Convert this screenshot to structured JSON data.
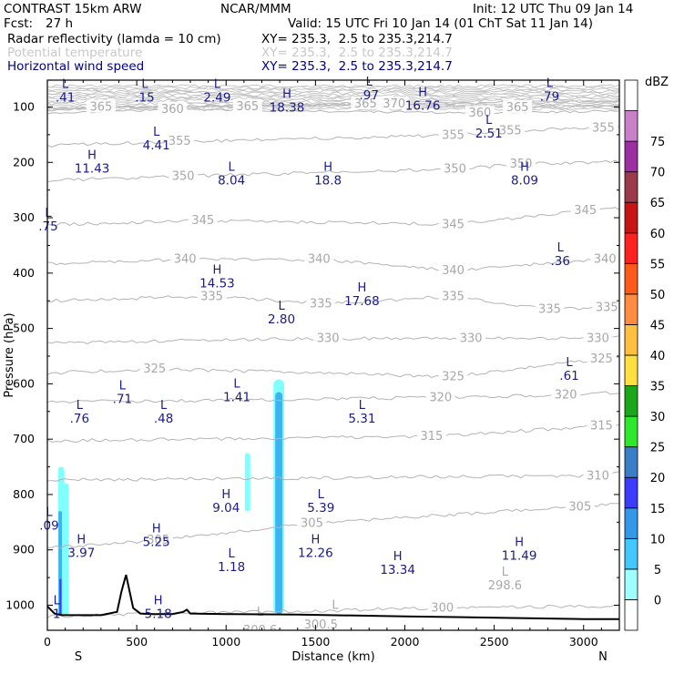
{
  "header": {
    "model": "CONTRAST 15km ARW",
    "org": "NCAR/MMM",
    "init": "Init: 12 UTC Thu 09 Jan 14",
    "fcst_label": "Fcst:",
    "fcst_value": "27 h",
    "valid": "Valid: 15 UTC Fri 10 Jan 14 (01 ChT Sat 11 Jan 14)",
    "fields": [
      {
        "name": "Radar reflectivity (lamda = 10 cm)",
        "xy": "XY= 235.3,  2.5 to 235.3,214.7",
        "color": "#000000"
      },
      {
        "name": "Potential temperature",
        "xy": "XY= 235.3,  2.5 to 235.3,214.7",
        "color": "#c8c8c8"
      },
      {
        "name": "Horizontal wind speed",
        "xy": "XY= 235.3,  2.5 to 235.3,214.7",
        "color": "#00008b"
      }
    ]
  },
  "colorbar": {
    "unit": "dBZ",
    "levels": [
      "0",
      "5",
      "10",
      "15",
      "20",
      "25",
      "30",
      "35",
      "40",
      "45",
      "50",
      "55",
      "60",
      "65",
      "70",
      "75"
    ],
    "colors": [
      "#ffffff",
      "#a0ffff",
      "#40c8ff",
      "#3498e8",
      "#3c3cff",
      "#3a7ec8",
      "#2ee82e",
      "#1aa81a",
      "#ffe040",
      "#ffbf40",
      "#ff8c40",
      "#ff5a1a",
      "#ff2020",
      "#c81414",
      "#9a3a4a",
      "#9c30a0",
      "#c880c8",
      "#ffffff"
    ]
  },
  "chart_data": {
    "type": "cross-section",
    "xlabel": "Distance (km)",
    "ylabel": "Pressure (hPa)",
    "x_ticks": [
      0,
      500,
      1000,
      1500,
      2000,
      2500,
      3000
    ],
    "y_ticks": [
      100,
      200,
      300,
      400,
      500,
      600,
      700,
      800,
      900,
      1000
    ],
    "xlim": [
      0,
      3200
    ],
    "ylim": [
      1050,
      55
    ],
    "x_end_labels": {
      "left": "S",
      "right": "N"
    },
    "theta_contours": [
      {
        "value": 300,
        "labels": [
          {
            "x": 2210,
            "p": 1005
          }
        ]
      },
      {
        "value": 305,
        "labels": [
          {
            "x": 620,
            "p": 882
          },
          {
            "x": 1480,
            "p": 852
          },
          {
            "x": 2980,
            "p": 822
          }
        ]
      },
      {
        "value": 310,
        "labels": [
          {
            "x": 3080,
            "p": 766
          }
        ]
      },
      {
        "value": 315,
        "labels": [
          {
            "x": 2150,
            "p": 695
          },
          {
            "x": 3100,
            "p": 676
          }
        ]
      },
      {
        "value": 320,
        "labels": [
          {
            "x": 2200,
            "p": 625
          },
          {
            "x": 2900,
            "p": 620
          }
        ]
      },
      {
        "value": 325,
        "labels": [
          {
            "x": 600,
            "p": 573
          },
          {
            "x": 2270,
            "p": 587
          },
          {
            "x": 3100,
            "p": 555
          }
        ]
      },
      {
        "value": 330,
        "labels": [
          {
            "x": 1570,
            "p": 518
          },
          {
            "x": 2370,
            "p": 518
          },
          {
            "x": 3080,
            "p": 518
          }
        ]
      },
      {
        "value": 335,
        "labels": [
          {
            "x": 920,
            "p": 442
          },
          {
            "x": 1530,
            "p": 455
          },
          {
            "x": 2270,
            "p": 442
          },
          {
            "x": 2810,
            "p": 465
          },
          {
            "x": 3130,
            "p": 462
          }
        ]
      },
      {
        "value": 340,
        "labels": [
          {
            "x": 770,
            "p": 375
          },
          {
            "x": 1520,
            "p": 375
          },
          {
            "x": 2270,
            "p": 395
          },
          {
            "x": 3120,
            "p": 375
          }
        ]
      },
      {
        "value": 345,
        "labels": [
          {
            "x": 870,
            "p": 305
          },
          {
            "x": 2270,
            "p": 312
          },
          {
            "x": 3010,
            "p": 287
          }
        ]
      },
      {
        "value": 350,
        "labels": [
          {
            "x": 760,
            "p": 225
          },
          {
            "x": 2280,
            "p": 212
          },
          {
            "x": 2650,
            "p": 203
          }
        ]
      },
      {
        "value": 355,
        "labels": [
          {
            "x": 740,
            "p": 162
          },
          {
            "x": 2270,
            "p": 151
          },
          {
            "x": 2590,
            "p": 143
          },
          {
            "x": 3110,
            "p": 138
          }
        ]
      },
      {
        "value": 360,
        "labels": [
          {
            "x": 700,
            "p": 104
          },
          {
            "x": 2420,
            "p": 111
          }
        ]
      },
      {
        "value": 365,
        "labels": [
          {
            "x": 300,
            "p": 100
          },
          {
            "x": 1120,
            "p": 99
          },
          {
            "x": 1780,
            "p": 94
          },
          {
            "x": 2630,
            "p": 101
          }
        ]
      },
      {
        "value": 370,
        "labels": [
          {
            "x": 1940,
            "p": 94
          }
        ]
      },
      {
        "value": 298.6,
        "labels": [
          {
            "x": 2560,
            "p": 965
          }
        ]
      },
      {
        "value": 300.6,
        "labels": [
          {
            "x": 1190,
            "p": 1045
          }
        ]
      },
      {
        "value": 300.5,
        "labels": [
          {
            "x": 1530,
            "p": 1035
          }
        ]
      }
    ],
    "theta_lows": [
      {
        "x": 1190,
        "p": 1012
      },
      {
        "x": 1610,
        "p": 1000
      },
      {
        "x": 2560,
        "p": 940
      }
    ],
    "wind_extrema": [
      {
        "type": "L",
        "value": ".41",
        "x": 100,
        "p": 72
      },
      {
        "type": "L",
        "value": ".15",
        "x": 545,
        "p": 72
      },
      {
        "type": "L",
        "value": "2.49",
        "x": 950,
        "p": 72
      },
      {
        "type": "H",
        "value": "18.38",
        "x": 1340,
        "p": 90
      },
      {
        "type": "L",
        "value": ".97",
        "x": 1800,
        "p": 68
      },
      {
        "type": "H",
        "value": "16.76",
        "x": 2100,
        "p": 87
      },
      {
        "type": "L",
        "value": ".79",
        "x": 2810,
        "p": 70
      },
      {
        "type": "L",
        "value": "2.51",
        "x": 2470,
        "p": 137
      },
      {
        "type": "L",
        "value": "4.41",
        "x": 610,
        "p": 158
      },
      {
        "type": "H",
        "value": "11.43",
        "x": 250,
        "p": 200
      },
      {
        "type": "L",
        "value": "8.04",
        "x": 1030,
        "p": 222
      },
      {
        "type": "H",
        "value": "18.8",
        "x": 1570,
        "p": 222
      },
      {
        "type": "H",
        "value": "8.09",
        "x": 2670,
        "p": 222
      },
      {
        "type": "L",
        "value": ".75",
        "x": 5,
        "p": 305
      },
      {
        "type": "L",
        "value": ".36",
        "x": 2870,
        "p": 367
      },
      {
        "type": "H",
        "value": "14.53",
        "x": 950,
        "p": 408
      },
      {
        "type": "H",
        "value": "17.68",
        "x": 1760,
        "p": 440
      },
      {
        "type": "L",
        "value": "2.80",
        "x": 1310,
        "p": 473
      },
      {
        "type": "L",
        "value": ".61",
        "x": 2920,
        "p": 575
      },
      {
        "type": "L",
        "value": ".71",
        "x": 420,
        "p": 617
      },
      {
        "type": "L",
        "value": "1.41",
        "x": 1060,
        "p": 613
      },
      {
        "type": "L",
        "value": ".76",
        "x": 180,
        "p": 652
      },
      {
        "type": "L",
        "value": ".48",
        "x": 650,
        "p": 652
      },
      {
        "type": "L",
        "value": "5.31",
        "x": 1760,
        "p": 652
      },
      {
        "type": "H",
        "value": "9.04",
        "x": 1000,
        "p": 813
      },
      {
        "type": "L",
        "value": "5.39",
        "x": 1530,
        "p": 813
      },
      {
        "type": "L",
        "value": ".09",
        "x": 10,
        "p": 845
      },
      {
        "type": "H",
        "value": "5.25",
        "x": 610,
        "p": 875
      },
      {
        "type": "H",
        "value": "3.97",
        "x": 190,
        "p": 895
      },
      {
        "type": "H",
        "value": "12.26",
        "x": 1500,
        "p": 895
      },
      {
        "type": "H",
        "value": "11.49",
        "x": 2640,
        "p": 900
      },
      {
        "type": "L",
        "value": "1.18",
        "x": 1030,
        "p": 920
      },
      {
        "type": "H",
        "value": "13.34",
        "x": 1960,
        "p": 925
      },
      {
        "type": "H",
        "value": "5.18",
        "x": 620,
        "p": 1005
      },
      {
        "type": "L",
        "value": "1",
        "x": 52,
        "p": 1005
      }
    ],
    "terrain": [
      [
        0,
        1002
      ],
      [
        40,
        1015
      ],
      [
        80,
        1018
      ],
      [
        130,
        1018
      ],
      [
        200,
        1018
      ],
      [
        300,
        1018
      ],
      [
        390,
        1012
      ],
      [
        415,
        975
      ],
      [
        440,
        945
      ],
      [
        460,
        975
      ],
      [
        480,
        1005
      ],
      [
        520,
        1015
      ],
      [
        600,
        1016
      ],
      [
        700,
        1016
      ],
      [
        760,
        1012
      ],
      [
        780,
        1008
      ],
      [
        800,
        1015
      ],
      [
        1000,
        1016
      ],
      [
        1400,
        1017
      ],
      [
        2000,
        1020
      ],
      [
        2600,
        1023
      ],
      [
        3000,
        1025
      ],
      [
        3200,
        1025
      ]
    ],
    "reflectivity_cells": [
      {
        "x": [
          60,
          95
        ],
        "p": [
          750,
          1018
        ],
        "dbz": 5
      },
      {
        "x": [
          92,
          120
        ],
        "p": [
          780,
          1018
        ],
        "dbz": 5
      },
      {
        "x": [
          62,
          82
        ],
        "p": [
          830,
          1018
        ],
        "dbz": 10
      },
      {
        "x": [
          68,
          78
        ],
        "p": [
          952,
          1018
        ],
        "dbz": 15
      },
      {
        "x": [
          1105,
          1135
        ],
        "p": [
          725,
          830
        ],
        "dbz": 5
      },
      {
        "x": [
          1265,
          1325
        ],
        "p": [
          592,
          1016
        ],
        "dbz": 5
      },
      {
        "x": [
          1275,
          1315
        ],
        "p": [
          615,
          1016
        ],
        "dbz": 10
      }
    ]
  }
}
